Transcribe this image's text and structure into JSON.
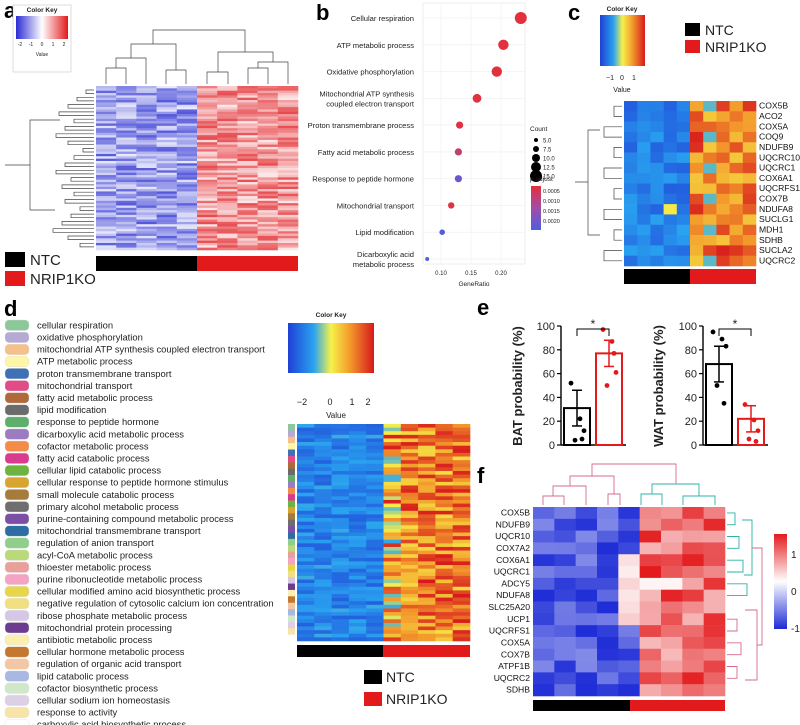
{
  "panels": {
    "a": {
      "label": "a",
      "color_key_title": "Color Key",
      "color_key_ticks": [
        "-2",
        "-1",
        "0",
        "1",
        "2"
      ],
      "color_key_xlabel": "Value",
      "legend": [
        "NTC",
        "NRIP1KO"
      ]
    },
    "b": {
      "label": "b",
      "chart_data": {
        "type": "scatter",
        "title": "",
        "xlabel": "GeneRatio",
        "ylabel": "",
        "xlim": [
          0.07,
          0.24
        ],
        "xticks": [
          "0.10",
          "0.15",
          "0.20"
        ],
        "categories": [
          "Cellular respiration",
          "ATP metabolic process",
          "Oxidative phosphorylation",
          "Mitochondrial ATP synthesis coupled electron transport",
          "Proton transmembrane process",
          "Fatty acid metabolic process",
          "Response to peptide hormone",
          "Mitochondrial transport",
          "Lipid modification",
          "Dicarboxylic acid metabolic process"
        ],
        "category_lines": [
          [
            "Cellular respiration"
          ],
          [
            "ATP metabolic process"
          ],
          [
            "Oxidative phosphorylation"
          ],
          [
            "Mitochondrial ATP synthesis",
            "coupled electron transport"
          ],
          [
            "Proton transmembrane process"
          ],
          [
            "Fatty acid metabolic process"
          ],
          [
            "Response to peptide hormone"
          ],
          [
            "Mitochondrial transport"
          ],
          [
            "Lipid modification"
          ],
          [
            "Dicarboxylic acid",
            "metabolic process"
          ]
        ],
        "gene_ratio": [
          0.233,
          0.204,
          0.193,
          0.16,
          0.131,
          0.129,
          0.129,
          0.117,
          0.102,
          0.077
        ],
        "count": [
          15,
          13,
          13,
          11,
          9,
          9,
          9,
          8,
          7,
          5
        ],
        "p_adjust": [
          2e-05,
          2e-05,
          3e-05,
          5e-05,
          0.0001,
          0.0006,
          0.0021,
          0.0001,
          0.0024,
          0.0023
        ],
        "count_legend_title": "Count",
        "count_legend": [
          "5.0",
          "7.5",
          "10.0",
          "12.5",
          "15.0"
        ],
        "padj_legend_title": "p.adjust",
        "padj_ticks": [
          "0.0005",
          "0.0010",
          "0.0015",
          "0.0020"
        ]
      }
    },
    "c": {
      "label": "c",
      "color_key_title": "Color Key",
      "color_key_ticks": [
        "−1",
        "0",
        "1"
      ],
      "color_key_xlabel": "Value",
      "legend": [
        "NTC",
        "NRIP1KO"
      ],
      "genes": [
        "COX5B",
        "ACO2",
        "COX5A",
        "COQ9",
        "NDUFB9",
        "UQCRC10",
        "UQCRC1",
        "COX6A1",
        "UQCRFS1",
        "COX7B",
        "NDUFA8",
        "SUCLG1",
        "MDH1",
        "SDHB",
        "SUCLA2",
        "UQCRC2"
      ]
    },
    "d": {
      "label": "d",
      "color_key_title": "Color Key",
      "color_key_ticks": [
        "−2",
        "0",
        "1",
        "2"
      ],
      "color_key_xlabel": "Value",
      "legend": [
        "NTC",
        "NRIP1KO"
      ],
      "terms": [
        {
          "name": "cellular respiration",
          "color": "#8cc99a"
        },
        {
          "name": "oxidative phosphorylation",
          "color": "#b7a9d6"
        },
        {
          "name": "mitochondrial ATP synthesis coupled electron transport",
          "color": "#f5c08a"
        },
        {
          "name": "ATP metabolic process",
          "color": "#fdf6a6"
        },
        {
          "name": "proton transmembrane transport",
          "color": "#3f6fb5"
        },
        {
          "name": "mitochondrial transport",
          "color": "#e14b86"
        },
        {
          "name": "fatty acid metabolic process",
          "color": "#b06a3a"
        },
        {
          "name": "lipid modification",
          "color": "#6b6b6b"
        },
        {
          "name": "response to peptide hormone",
          "color": "#5fae6b"
        },
        {
          "name": "dicarboxylic acid metabolic process",
          "color": "#9b7cc0"
        },
        {
          "name": "cofactor metabolic process",
          "color": "#f28c48"
        },
        {
          "name": "fatty acid catabolic process",
          "color": "#d93b8e"
        },
        {
          "name": "cellular lipid catabolic process",
          "color": "#6cb33f"
        },
        {
          "name": "cellular response to peptide hormone stimulus",
          "color": "#d9a531"
        },
        {
          "name": "small molecule catabolic process",
          "color": "#a57c3c"
        },
        {
          "name": "primary alcohol metabolic process",
          "color": "#6f6f6f"
        },
        {
          "name": "purine-containing compound metabolic process",
          "color": "#7b4fa5"
        },
        {
          "name": "mitochondrial transmembrane transport",
          "color": "#2e6da4"
        },
        {
          "name": "regulation of anion transport",
          "color": "#8fcf8b"
        },
        {
          "name": "acyl-CoA metabolic process",
          "color": "#b9d97a"
        },
        {
          "name": "thioester metabolic process",
          "color": "#e9a09a"
        },
        {
          "name": "purine ribonucleotide metabolic process",
          "color": "#f4a3c4"
        },
        {
          "name": "cellular modified amino acid biosynthetic process",
          "color": "#e7d54a"
        },
        {
          "name": "negative regulation of cytosolic calcium ion concentration",
          "color": "#f0e080"
        },
        {
          "name": "ribose phosphate metabolic process",
          "color": "#d7c7e6"
        },
        {
          "name": "mitochondrial protein processing",
          "color": "#6c3d8f"
        },
        {
          "name": "antibiotic metabolic process",
          "color": "#fbeeb0"
        },
        {
          "name": "cellular hormone metabolic process",
          "color": "#c5772f"
        },
        {
          "name": "regulation of organic acid transport",
          "color": "#f3c7a5"
        },
        {
          "name": "lipid catabolic process",
          "color": "#a8b8e0"
        },
        {
          "name": "cofactor biosynthetic process",
          "color": "#cfe8c9"
        },
        {
          "name": "cellular sodium ion homeostasis",
          "color": "#ddd0e6"
        },
        {
          "name": "response to activity",
          "color": "#f8e3a8"
        },
        {
          "name": "carboxylic acid biosynthetic process",
          "color": "#ffffff"
        }
      ]
    },
    "e": {
      "label": "e",
      "chart_data": [
        {
          "type": "bar",
          "title": "",
          "xlabel": "",
          "ylabel": "BAT probability (%)",
          "ylim": [
            0,
            100
          ],
          "yticks": [
            "0",
            "20",
            "40",
            "60",
            "80",
            "100"
          ],
          "categories": [
            "NTC",
            "NRIP1KO"
          ],
          "values": [
            31,
            77
          ],
          "errors": [
            15,
            11
          ],
          "points": [
            [
              52,
              22,
              12,
              4,
              5
            ],
            [
              97,
              87,
              61,
              50,
              77
            ]
          ],
          "colors": [
            "#000000",
            "#e31a1c"
          ],
          "significance": "*"
        },
        {
          "type": "bar",
          "title": "",
          "xlabel": "",
          "ylabel": "WAT probability (%)",
          "ylim": [
            0,
            100
          ],
          "yticks": [
            "0",
            "20",
            "40",
            "60",
            "80",
            "100"
          ],
          "categories": [
            "NTC",
            "NRIP1KO"
          ],
          "values": [
            68,
            22
          ],
          "errors": [
            15,
            11
          ],
          "points": [
            [
              95,
              89,
              83,
              50,
              35
            ],
            [
              34,
              21,
              12,
              5,
              3
            ]
          ],
          "colors": [
            "#000000",
            "#e31a1c"
          ],
          "significance": "*"
        }
      ]
    },
    "f": {
      "label": "f",
      "genes": [
        "COX5B",
        "NDUFB9",
        "UQCR10",
        "COX7A2",
        "COX6A1",
        "UQCRC1",
        "ADCY5",
        "NDUFA8",
        "SLC25A20",
        "UCP1",
        "UQCRFS1",
        "COX5A",
        "COX7B",
        "ATPF1B",
        "UQCRC2",
        "SDHB"
      ],
      "scale_ticks": [
        "1",
        "0",
        "-1"
      ]
    }
  }
}
